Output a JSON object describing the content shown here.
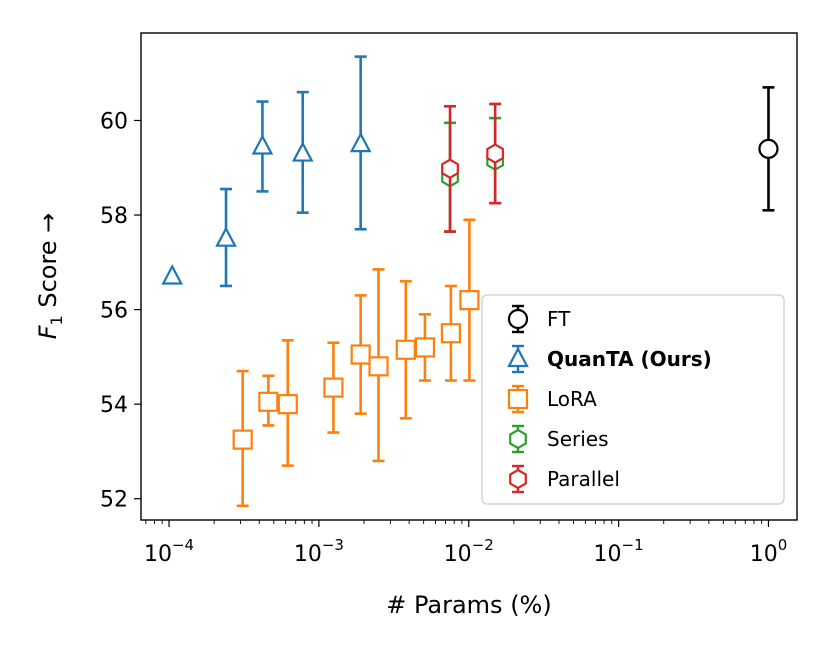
{
  "chart_data": {
    "type": "scatter",
    "xscale": "log",
    "xlim": [
      6.5e-05,
      1.55
    ],
    "ylim": [
      51.55,
      61.85
    ],
    "xlabel": "# Params (%)",
    "ylabel": "F₁ Score →",
    "ylabel_main": "F",
    "ylabel_sub": "1",
    "ylabel_rest": " Score →",
    "xticks": [
      {
        "value": 0.0001,
        "base": "10",
        "exp": "−4"
      },
      {
        "value": 0.001,
        "base": "10",
        "exp": "−3"
      },
      {
        "value": 0.01,
        "base": "10",
        "exp": "−2"
      },
      {
        "value": 0.1,
        "base": "10",
        "exp": "−1"
      },
      {
        "value": 1,
        "base": "10",
        "exp": "0"
      }
    ],
    "yticks": [
      {
        "value": 52,
        "label": "52"
      },
      {
        "value": 54,
        "label": "54"
      },
      {
        "value": 56,
        "label": "56"
      },
      {
        "value": 58,
        "label": "58"
      },
      {
        "value": 60,
        "label": "60"
      }
    ],
    "legend_position": "lower-right",
    "series": [
      {
        "name": "FT",
        "bold": false,
        "color": "#000000",
        "marker": "circle",
        "points": [
          {
            "x": 1.0,
            "y": 59.4,
            "lo": 58.1,
            "hi": 60.7
          }
        ]
      },
      {
        "name": "QuanTA (Ours)",
        "bold": true,
        "color": "#1f77b4",
        "marker": "triangle",
        "points": [
          {
            "x": 0.000105,
            "y": 56.7,
            "lo": 56.7,
            "hi": 56.7
          },
          {
            "x": 0.00024,
            "y": 57.5,
            "lo": 56.5,
            "hi": 58.55
          },
          {
            "x": 0.00042,
            "y": 59.45,
            "lo": 58.5,
            "hi": 60.4
          },
          {
            "x": 0.00078,
            "y": 59.3,
            "lo": 58.05,
            "hi": 60.6
          },
          {
            "x": 0.0019,
            "y": 59.5,
            "lo": 57.7,
            "hi": 61.35
          }
        ]
      },
      {
        "name": "LoRA",
        "bold": false,
        "color": "#ff7f0e",
        "marker": "square",
        "points": [
          {
            "x": 0.00031,
            "y": 53.25,
            "lo": 51.85,
            "hi": 54.7
          },
          {
            "x": 0.00046,
            "y": 54.05,
            "lo": 53.55,
            "hi": 54.6
          },
          {
            "x": 0.00062,
            "y": 54.0,
            "lo": 52.7,
            "hi": 55.35
          },
          {
            "x": 0.00125,
            "y": 54.35,
            "lo": 53.4,
            "hi": 55.3
          },
          {
            "x": 0.0019,
            "y": 55.05,
            "lo": 53.8,
            "hi": 56.3
          },
          {
            "x": 0.0025,
            "y": 54.8,
            "lo": 52.8,
            "hi": 56.85
          },
          {
            "x": 0.0038,
            "y": 55.15,
            "lo": 53.7,
            "hi": 56.6
          },
          {
            "x": 0.0051,
            "y": 55.2,
            "lo": 54.5,
            "hi": 55.9
          },
          {
            "x": 0.0076,
            "y": 55.5,
            "lo": 54.5,
            "hi": 56.5
          },
          {
            "x": 0.0101,
            "y": 56.2,
            "lo": 54.5,
            "hi": 57.9
          }
        ]
      },
      {
        "name": "Series",
        "bold": false,
        "color": "#2ca02c",
        "marker": "hexagon",
        "points": [
          {
            "x": 0.0075,
            "y": 58.8,
            "lo": 57.65,
            "hi": 59.95
          },
          {
            "x": 0.015,
            "y": 59.15,
            "lo": 58.25,
            "hi": 60.05
          }
        ]
      },
      {
        "name": "Parallel",
        "bold": false,
        "color": "#d62728",
        "marker": "hexagon",
        "points": [
          {
            "x": 0.0075,
            "y": 58.98,
            "lo": 57.65,
            "hi": 60.3
          },
          {
            "x": 0.015,
            "y": 59.3,
            "lo": 58.25,
            "hi": 60.35
          }
        ]
      }
    ]
  }
}
